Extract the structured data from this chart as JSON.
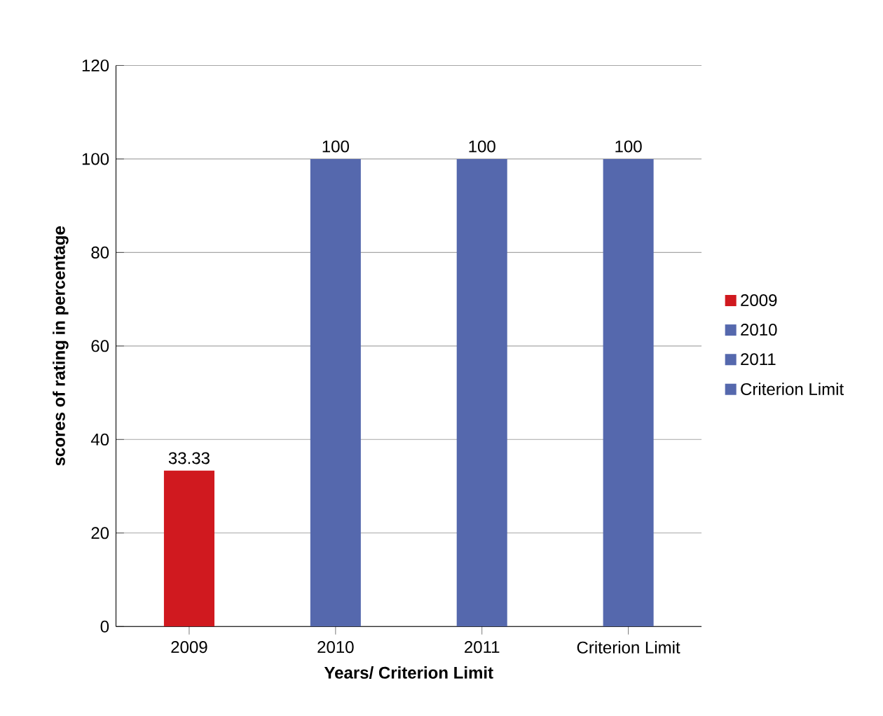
{
  "chart_data": {
    "type": "bar",
    "categories": [
      "2009",
      "2010",
      "2011",
      "Criterion Limit"
    ],
    "series": [
      {
        "name": "2009",
        "color": "#d0191f",
        "values": [
          33.33,
          null,
          null,
          null
        ]
      },
      {
        "name": "2010",
        "color": "#5568ad",
        "values": [
          null,
          100,
          null,
          null
        ]
      },
      {
        "name": "2011",
        "color": "#5568ad",
        "values": [
          null,
          null,
          100,
          null
        ]
      },
      {
        "name": "Criterion Limit",
        "color": "#5568ad",
        "values": [
          null,
          null,
          null,
          100
        ]
      }
    ],
    "xlabel": "Years/ Criterion Limit",
    "ylabel": "scores of rating in percentage",
    "ylim": [
      0,
      120
    ],
    "yticks": [
      0,
      20,
      40,
      60,
      80,
      100,
      120
    ],
    "grid": "y",
    "legend": "right",
    "data_labels": true
  }
}
